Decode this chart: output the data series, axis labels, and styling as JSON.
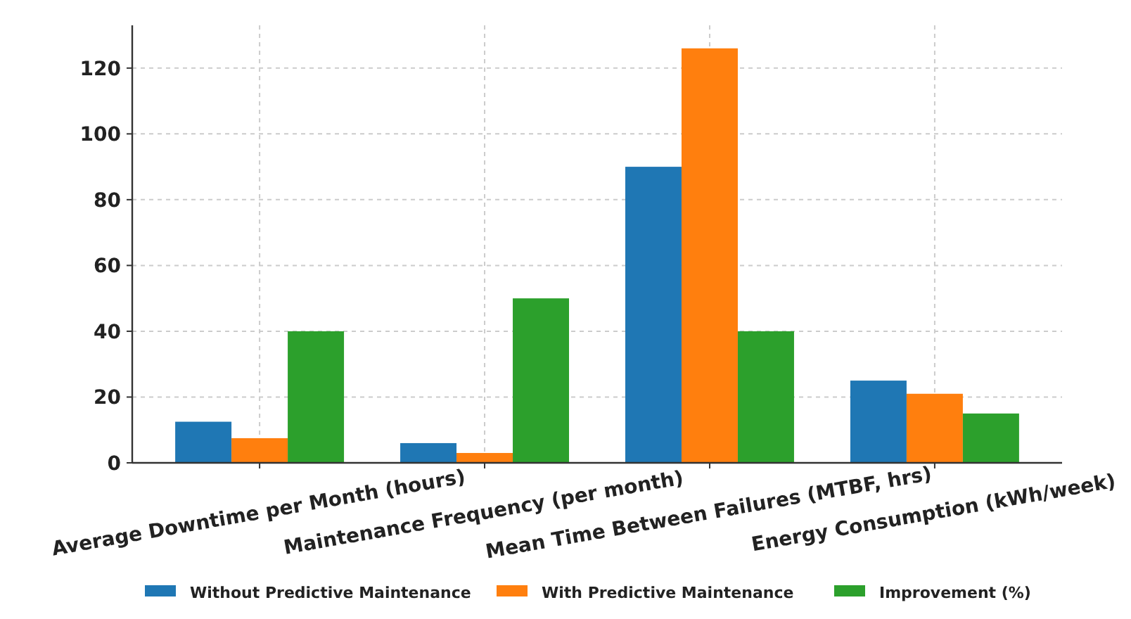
{
  "chart_data": {
    "type": "bar",
    "categories": [
      "Average Downtime per Month (hours)",
      "Maintenance Frequency (per month)",
      "Mean Time Between Failures (MTBF, hrs)",
      "Energy Consumption (kWh/week)"
    ],
    "series": [
      {
        "name": "Without Predictive Maintenance",
        "color": "#1f77b4",
        "values": [
          12.5,
          6,
          90,
          25
        ]
      },
      {
        "name": "With Predictive Maintenance",
        "color": "#ff7f0e",
        "values": [
          7.5,
          3,
          126,
          21
        ]
      },
      {
        "name": "Improvement (%)",
        "color": "#2ca02c",
        "values": [
          40,
          50,
          40,
          15
        ]
      }
    ],
    "ylim": [
      0,
      133
    ],
    "yticks": [
      0,
      20,
      40,
      60,
      80,
      100,
      120
    ],
    "grid": true,
    "legend": "bottom"
  }
}
